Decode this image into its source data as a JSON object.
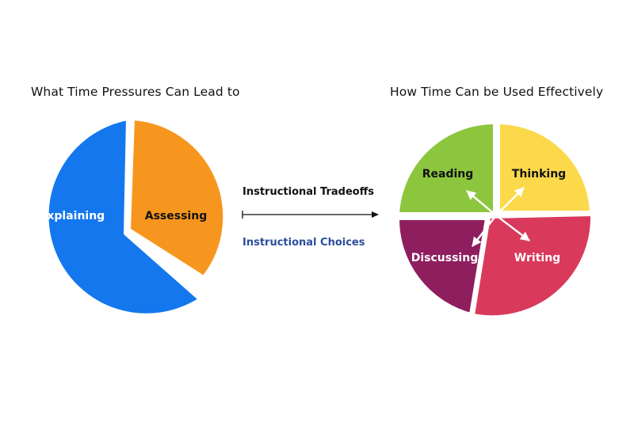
{
  "left_pie": {
    "title": "What Time Pressures Can Lead to",
    "slices": [
      {
        "label": "Explaining",
        "color": "#1477ee",
        "label_color": "#ffffff"
      },
      {
        "label": "Assessing",
        "color": "#f7961e",
        "label_color": "#111111"
      }
    ]
  },
  "middle": {
    "tradeoffs_label": "Instructional Tradeoffs",
    "choices_label": "Instructional Choices",
    "choices_color": "#2d4d9c"
  },
  "right_pie": {
    "title": "How Time Can be Used Effectively",
    "slices": [
      {
        "label": "Reading",
        "color": "#8cc63f",
        "label_color": "#111111"
      },
      {
        "label": "Thinking",
        "color": "#fcd94a",
        "label_color": "#111111"
      },
      {
        "label": "Writing",
        "color": "#d93a5b",
        "label_color": "#ffffff"
      },
      {
        "label": "Discussing",
        "color": "#8f1e5f",
        "label_color": "#ffffff"
      }
    ]
  }
}
